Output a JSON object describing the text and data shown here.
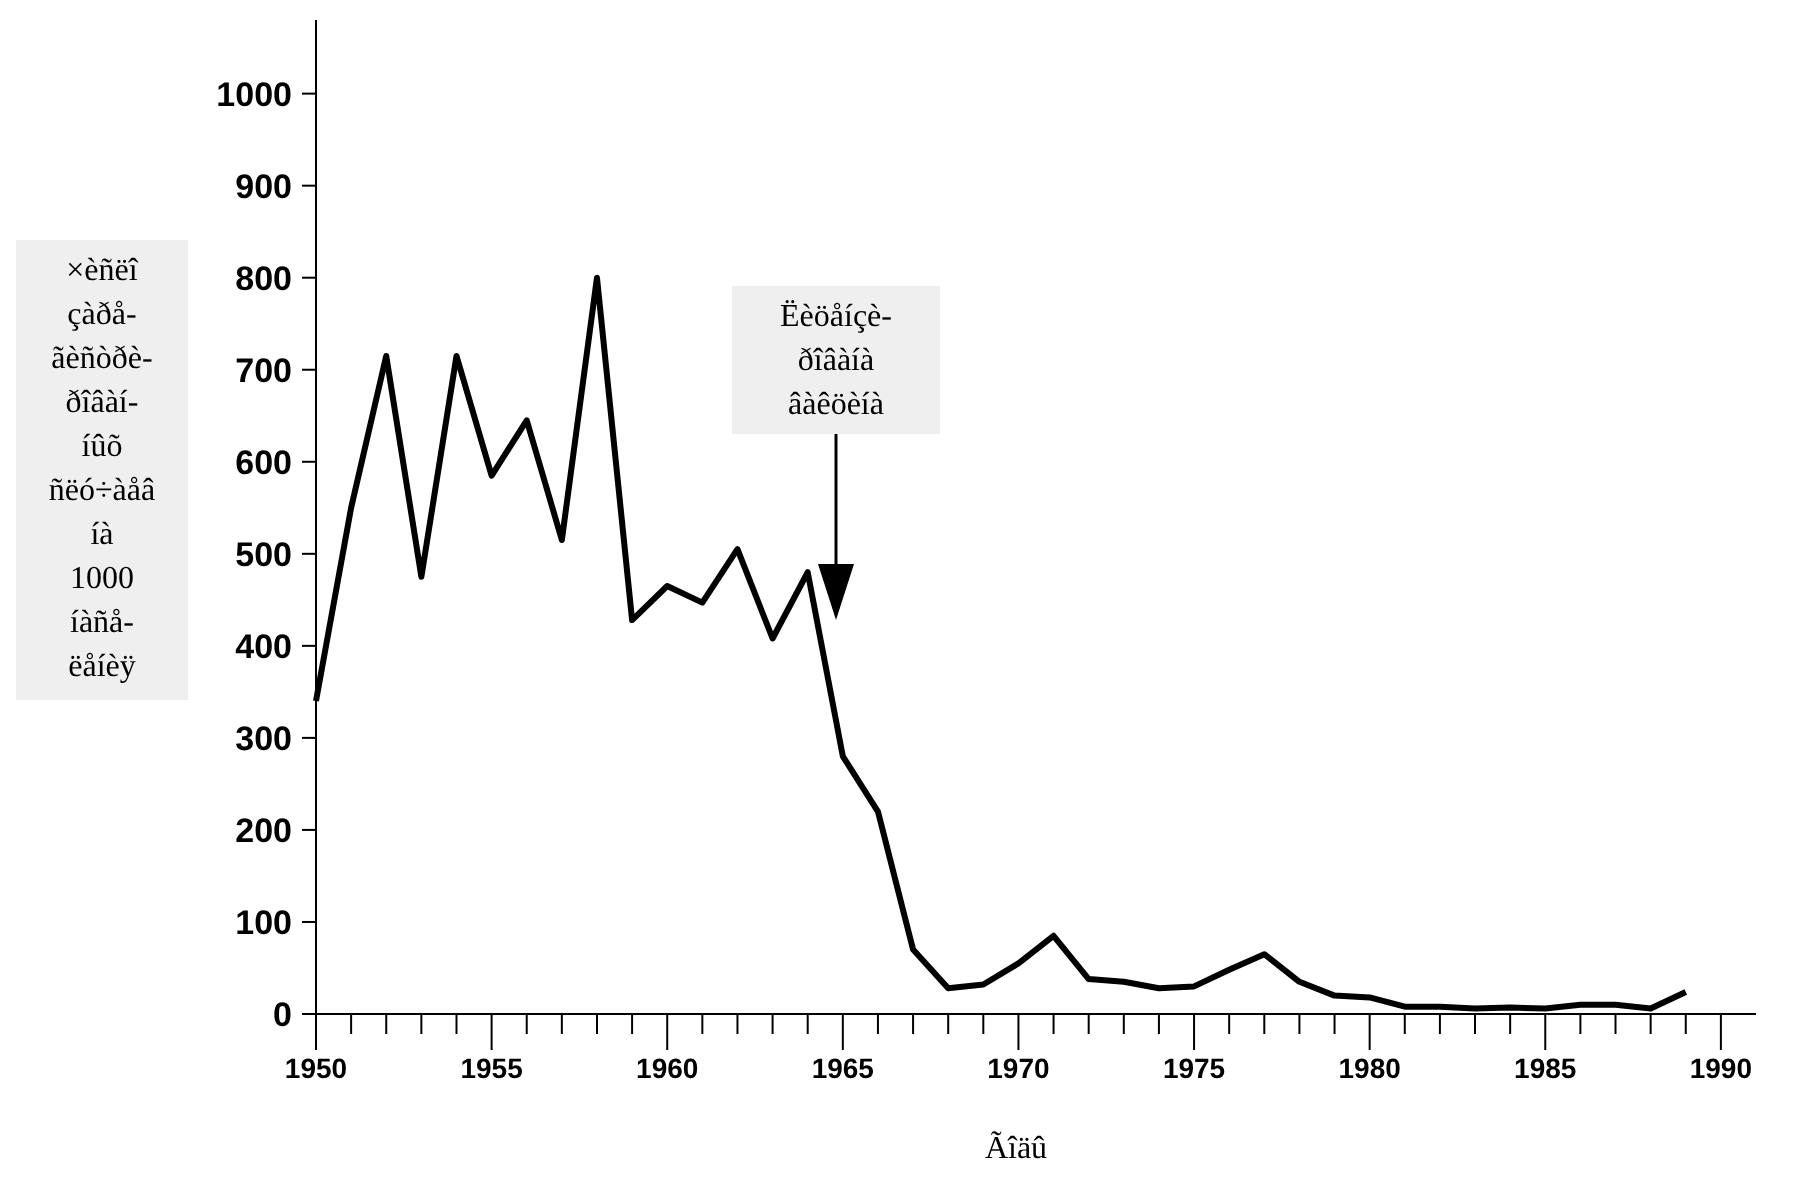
{
  "chart_data": {
    "type": "line",
    "xlabel": "Ãîäû",
    "ylabel": "×èñëî\nçàðå-\nãèñòðè-\nðîâàí-\níûõ\nñëó÷àåâ\níà\n1000\níàñå-\nëåíèÿ",
    "x": [
      1950,
      1951,
      1952,
      1953,
      1954,
      1955,
      1956,
      1957,
      1958,
      1959,
      1960,
      1961,
      1962,
      1963,
      1964,
      1965,
      1966,
      1967,
      1968,
      1969,
      1970,
      1971,
      1972,
      1973,
      1974,
      1975,
      1976,
      1977,
      1978,
      1979,
      1980,
      1981,
      1982,
      1983,
      1984,
      1985,
      1986,
      1987,
      1988,
      1989
    ],
    "series": [
      {
        "color": "#000000",
        "values": [
          340,
          550,
          715,
          475,
          715,
          585,
          645,
          515,
          800,
          428,
          465,
          447,
          505,
          408,
          480,
          280,
          220,
          70,
          28,
          32,
          55,
          85,
          38,
          35,
          28,
          30,
          48,
          65,
          35,
          20,
          18,
          8,
          8,
          6,
          7,
          6,
          10,
          10,
          6,
          24
        ]
      }
    ],
    "xlim": [
      1950,
      1991
    ],
    "ylim": [
      0,
      1080
    ],
    "xticks": [
      1950,
      {
        "value": 1951,
        "label": null
      },
      {
        "value": 1952,
        "label": null
      },
      {
        "value": 1953,
        "label": null
      },
      {
        "value": 1954,
        "label": null
      },
      1955,
      {
        "value": 1956,
        "label": null
      },
      {
        "value": 1957,
        "label": null
      },
      {
        "value": 1958,
        "label": null
      },
      {
        "value": 1959,
        "label": null
      },
      1960,
      {
        "value": 1961,
        "label": null
      },
      {
        "value": 1962,
        "label": null
      },
      {
        "value": 1963,
        "label": null
      },
      {
        "value": 1964,
        "label": null
      },
      1965,
      {
        "value": 1966,
        "label": null
      },
      {
        "value": 1967,
        "label": null
      },
      {
        "value": 1968,
        "label": null
      },
      {
        "value": 1969,
        "label": null
      },
      1970,
      {
        "value": 1971,
        "label": null
      },
      {
        "value": 1972,
        "label": null
      },
      {
        "value": 1973,
        "label": null
      },
      {
        "value": 1974,
        "label": null
      },
      1975,
      {
        "value": 1976,
        "label": null
      },
      {
        "value": 1977,
        "label": null
      },
      {
        "value": 1978,
        "label": null
      },
      {
        "value": 1979,
        "label": null
      },
      1980,
      {
        "value": 1981,
        "label": null
      },
      {
        "value": 1982,
        "label": null
      },
      {
        "value": 1983,
        "label": null
      },
      {
        "value": 1984,
        "label": null
      },
      1985,
      {
        "value": 1986,
        "label": null
      },
      {
        "value": 1987,
        "label": null
      },
      {
        "value": 1988,
        "label": null
      },
      {
        "value": 1989,
        "label": null
      },
      1990
    ],
    "yticks": [
      0,
      100,
      200,
      300,
      400,
      500,
      600,
      700,
      800,
      900,
      1000
    ],
    "annotations": [
      "Ëèöåíçè-\nðîâàíà\nâàêöèíà"
    ],
    "grid": false,
    "marker": "none",
    "line_style": "solid"
  }
}
